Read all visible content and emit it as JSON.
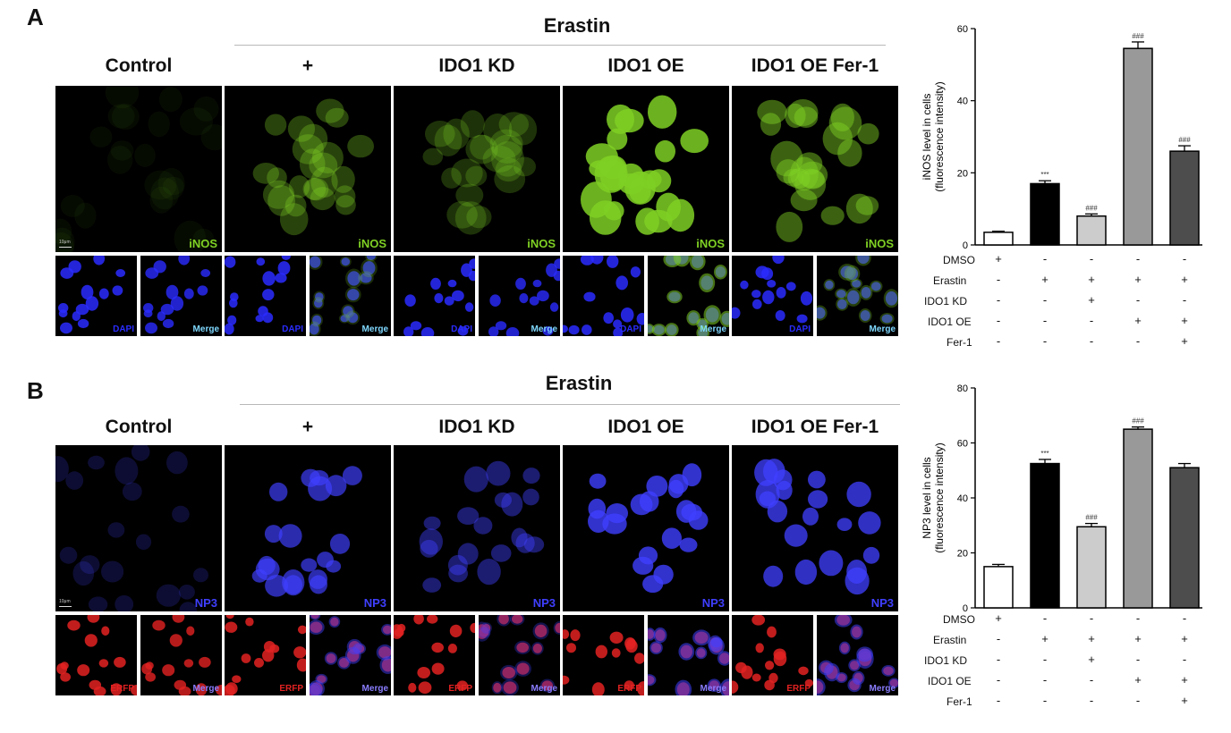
{
  "panels": [
    {
      "label": "A",
      "erastin_label": "Erastin",
      "columns": [
        "Control",
        "+",
        "IDO1 KD",
        "IDO1 OE",
        "IDO1 OE Fer-1"
      ],
      "main_stain": "iNOS",
      "sub_stains": [
        "DAPI",
        "Merge"
      ],
      "scale_label": "10μm",
      "colors": {
        "main": "#7fd024",
        "sub1": "#2a2cff"
      }
    },
    {
      "label": "B",
      "erastin_label": "Erastin",
      "columns": [
        "Control",
        "+",
        "IDO1 KD",
        "IDO1 OE",
        "IDO1 OE Fer-1"
      ],
      "main_stain": "NP3",
      "sub_stains": [
        "ERFP",
        "Merge"
      ],
      "scale_label": "10μm",
      "colors": {
        "main": "#3f3fff",
        "sub1": "#e32222"
      }
    }
  ],
  "condition_table": {
    "rows": [
      {
        "label": "DMSO",
        "symbols": [
          "+",
          "-",
          "-",
          "-",
          "-"
        ]
      },
      {
        "label": "Erastin",
        "symbols": [
          "-",
          "+",
          "+",
          "+",
          "+"
        ]
      },
      {
        "label": "IDO1 KD",
        "symbols": [
          "-",
          "-",
          "+",
          "-",
          "-"
        ]
      },
      {
        "label": "IDO1 OE",
        "symbols": [
          "-",
          "-",
          "-",
          "+",
          "+"
        ]
      },
      {
        "label": "Fer-1",
        "symbols": [
          "-",
          "-",
          "-",
          "-",
          "+"
        ]
      }
    ]
  },
  "chart_data": [
    {
      "type": "bar",
      "ylabel": "iNOS level in cells (fluorescence intensity)",
      "ylabel_lines": [
        "iNOS level in cells",
        "(fluorescence intensity)"
      ],
      "ylim": [
        0,
        60
      ],
      "yticks": [
        0,
        20,
        40,
        60
      ],
      "values": [
        3.5,
        17,
        8,
        54.5,
        26
      ],
      "errors": [
        0.3,
        0.8,
        0.6,
        1.8,
        1.5
      ],
      "fills": [
        "#ffffff",
        "#000000",
        "#cccccc",
        "#999999",
        "#4d4d4d"
      ],
      "annotations": [
        "",
        "***",
        "###",
        "###",
        "###"
      ]
    },
    {
      "type": "bar",
      "ylabel": "NP3 level in cells (fluorescence intensity)",
      "ylabel_lines": [
        "NP3 level in cells",
        "(fluorescence intensity)"
      ],
      "ylim": [
        0,
        80
      ],
      "yticks": [
        0,
        20,
        40,
        60,
        80
      ],
      "values": [
        15,
        52.5,
        29.5,
        65,
        51
      ],
      "errors": [
        0.8,
        1.5,
        1.2,
        0.8,
        1.5
      ],
      "fills": [
        "#ffffff",
        "#000000",
        "#cccccc",
        "#999999",
        "#4d4d4d"
      ],
      "annotations": [
        "",
        "***",
        "###",
        "###",
        ""
      ]
    }
  ]
}
